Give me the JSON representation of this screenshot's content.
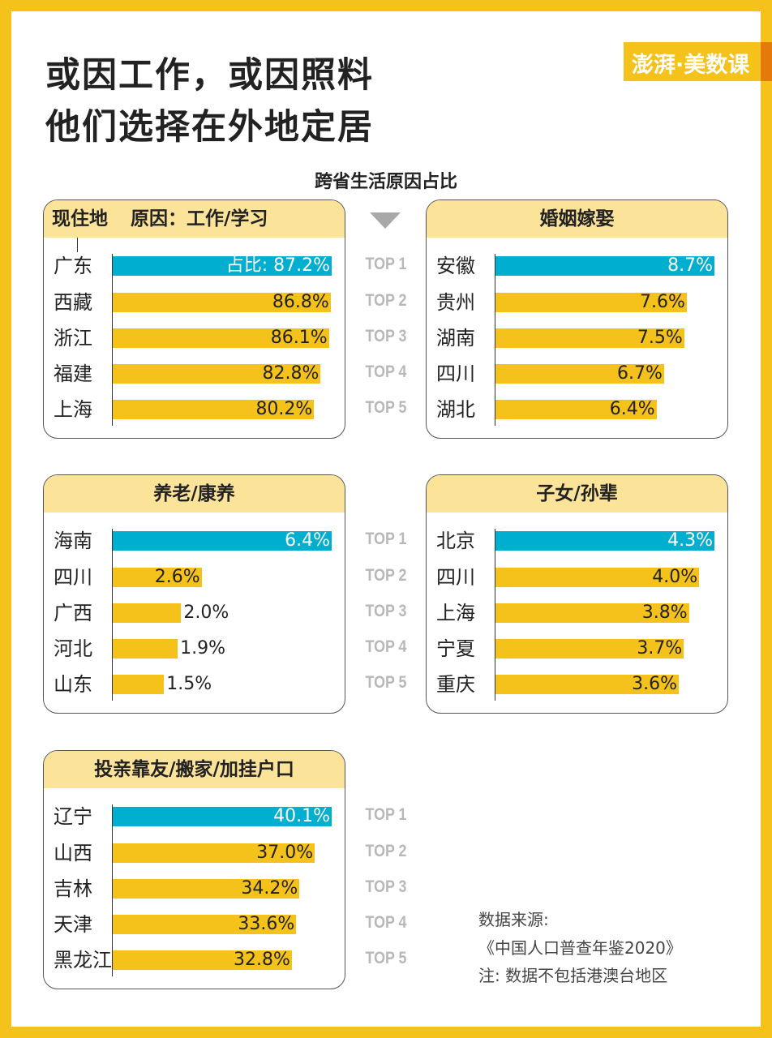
{
  "title_lines": [
    "或因工作，或因照料",
    "他们选择在外地定居"
  ],
  "logo_text": "澎湃·美数课",
  "colors": {
    "frame": "#F5C21B",
    "top_bar": "#00AECF",
    "bar": "#F5C21B",
    "header": "#FBE39A",
    "rank_text": "#B8B8B8"
  },
  "chart_data": {
    "type": "bar",
    "title": "跨省生活原因占比",
    "orientation": "horizontal",
    "ranks": [
      "TOP 1",
      "TOP 2",
      "TOP 3",
      "TOP 4",
      "TOP 5"
    ],
    "column_label": "现住地",
    "value_prefix_first": "占比: ",
    "unit": "%",
    "panels": [
      {
        "name": "原因：工作/学习",
        "categories": [
          "广东",
          "西藏",
          "浙江",
          "福建",
          "上海"
        ],
        "values": [
          87.2,
          86.8,
          86.1,
          82.8,
          80.2
        ]
      },
      {
        "name": "婚姻嫁娶",
        "categories": [
          "安徽",
          "贵州",
          "湖南",
          "四川",
          "湖北"
        ],
        "values": [
          8.7,
          7.6,
          7.5,
          6.7,
          6.4
        ]
      },
      {
        "name": "养老/康养",
        "categories": [
          "海南",
          "四川",
          "广西",
          "河北",
          "山东"
        ],
        "values": [
          6.4,
          2.6,
          2.0,
          1.9,
          1.5
        ]
      },
      {
        "name": "子女/孙辈",
        "categories": [
          "北京",
          "四川",
          "上海",
          "宁夏",
          "重庆"
        ],
        "values": [
          4.3,
          4.0,
          3.8,
          3.7,
          3.6
        ]
      },
      {
        "name": "投亲靠友/搬家/加挂户口",
        "categories": [
          "辽宁",
          "山西",
          "吉林",
          "天津",
          "黑龙江"
        ],
        "values": [
          40.1,
          37.0,
          34.2,
          33.6,
          32.8
        ]
      }
    ]
  },
  "source": [
    "数据来源:",
    "《中国人口普查年鉴2020》",
    "注: 数据不包括港澳台地区"
  ]
}
